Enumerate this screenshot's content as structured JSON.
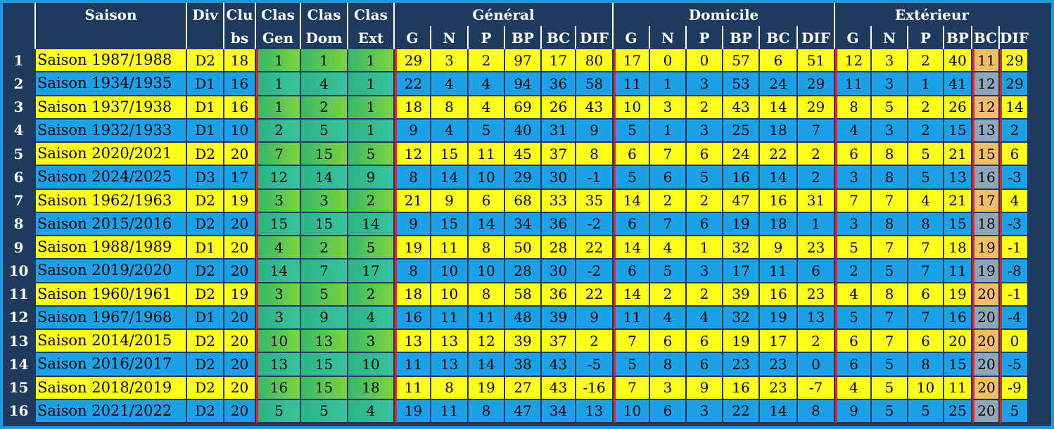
{
  "header": {
    "saison": "Saison",
    "div": "Div",
    "clubs_top": "Clu",
    "clubs_bottom": "bs",
    "clas_top": [
      "Clas",
      "Clas",
      "Clas"
    ],
    "clas_bottom": [
      "Gen",
      "Dom",
      "Ext"
    ],
    "groups": [
      "Général",
      "Domicile",
      "Extérieur"
    ],
    "stat_cols": [
      "G",
      "N",
      "P",
      "BP",
      "BC",
      "DIF"
    ]
  },
  "colors": {
    "background": "#1e3a5f",
    "border_accent": "#1a9be0",
    "row_yellow": "#ffff1a",
    "row_blue": "#1aa1e8",
    "separator_red": "#e8212a"
  },
  "rows": [
    {
      "rank": "1",
      "saison": "Saison 1987/1988",
      "div": "D2",
      "clubs": "18",
      "cg": "1",
      "cd": "1",
      "ce": "1",
      "gen": [
        "29",
        "3",
        "2",
        "97",
        "17",
        "80"
      ],
      "dom": [
        "17",
        "0",
        "0",
        "57",
        "6",
        "51"
      ],
      "ext": [
        "12",
        "3",
        "2",
        "40",
        "11",
        "29"
      ]
    },
    {
      "rank": "2",
      "saison": "Saison 1934/1935",
      "div": "D1",
      "clubs": "16",
      "cg": "1",
      "cd": "4",
      "ce": "1",
      "gen": [
        "22",
        "4",
        "4",
        "94",
        "36",
        "58"
      ],
      "dom": [
        "11",
        "1",
        "3",
        "53",
        "24",
        "29"
      ],
      "ext": [
        "11",
        "3",
        "1",
        "41",
        "12",
        "29"
      ]
    },
    {
      "rank": "3",
      "saison": "Saison 1937/1938",
      "div": "D1",
      "clubs": "16",
      "cg": "1",
      "cd": "2",
      "ce": "1",
      "gen": [
        "18",
        "8",
        "4",
        "69",
        "26",
        "43"
      ],
      "dom": [
        "10",
        "3",
        "2",
        "43",
        "14",
        "29"
      ],
      "ext": [
        "8",
        "5",
        "2",
        "26",
        "12",
        "14"
      ]
    },
    {
      "rank": "4",
      "saison": "Saison 1932/1933",
      "div": "D1",
      "clubs": "10",
      "cg": "2",
      "cd": "5",
      "ce": "1",
      "gen": [
        "9",
        "4",
        "5",
        "40",
        "31",
        "9"
      ],
      "dom": [
        "5",
        "1",
        "3",
        "25",
        "18",
        "7"
      ],
      "ext": [
        "4",
        "3",
        "2",
        "15",
        "13",
        "2"
      ]
    },
    {
      "rank": "5",
      "saison": "Saison 2020/2021",
      "div": "D2",
      "clubs": "20",
      "cg": "7",
      "cd": "15",
      "ce": "5",
      "gen": [
        "12",
        "15",
        "11",
        "45",
        "37",
        "8"
      ],
      "dom": [
        "6",
        "7",
        "6",
        "24",
        "22",
        "2"
      ],
      "ext": [
        "6",
        "8",
        "5",
        "21",
        "15",
        "6"
      ]
    },
    {
      "rank": "6",
      "saison": "Saison 2024/2025",
      "div": "D3",
      "clubs": "17",
      "cg": "12",
      "cd": "14",
      "ce": "9",
      "gen": [
        "8",
        "14",
        "10",
        "29",
        "30",
        "-1"
      ],
      "dom": [
        "5",
        "6",
        "5",
        "16",
        "14",
        "2"
      ],
      "ext": [
        "3",
        "8",
        "5",
        "13",
        "16",
        "-3"
      ]
    },
    {
      "rank": "7",
      "saison": "Saison 1962/1963",
      "div": "D2",
      "clubs": "19",
      "cg": "3",
      "cd": "3",
      "ce": "2",
      "gen": [
        "21",
        "9",
        "6",
        "68",
        "33",
        "35"
      ],
      "dom": [
        "14",
        "2",
        "2",
        "47",
        "16",
        "31"
      ],
      "ext": [
        "7",
        "7",
        "4",
        "21",
        "17",
        "4"
      ]
    },
    {
      "rank": "8",
      "saison": "Saison 2015/2016",
      "div": "D2",
      "clubs": "20",
      "cg": "15",
      "cd": "15",
      "ce": "14",
      "gen": [
        "9",
        "15",
        "14",
        "34",
        "36",
        "-2"
      ],
      "dom": [
        "6",
        "7",
        "6",
        "19",
        "18",
        "1"
      ],
      "ext": [
        "3",
        "8",
        "8",
        "15",
        "18",
        "-3"
      ]
    },
    {
      "rank": "9",
      "saison": "Saison 1988/1989",
      "div": "D1",
      "clubs": "20",
      "cg": "4",
      "cd": "2",
      "ce": "5",
      "gen": [
        "19",
        "11",
        "8",
        "50",
        "28",
        "22"
      ],
      "dom": [
        "14",
        "4",
        "1",
        "32",
        "9",
        "23"
      ],
      "ext": [
        "5",
        "7",
        "7",
        "18",
        "19",
        "-1"
      ]
    },
    {
      "rank": "10",
      "saison": "Saison 2019/2020",
      "div": "D2",
      "clubs": "20",
      "cg": "14",
      "cd": "7",
      "ce": "17",
      "gen": [
        "8",
        "10",
        "10",
        "28",
        "30",
        "-2"
      ],
      "dom": [
        "6",
        "5",
        "3",
        "17",
        "11",
        "6"
      ],
      "ext": [
        "2",
        "5",
        "7",
        "11",
        "19",
        "-8"
      ]
    },
    {
      "rank": "11",
      "saison": "Saison 1960/1961",
      "div": "D2",
      "clubs": "19",
      "cg": "3",
      "cd": "5",
      "ce": "2",
      "gen": [
        "18",
        "10",
        "8",
        "58",
        "36",
        "22"
      ],
      "dom": [
        "14",
        "2",
        "2",
        "39",
        "16",
        "23"
      ],
      "ext": [
        "4",
        "8",
        "6",
        "19",
        "20",
        "-1"
      ]
    },
    {
      "rank": "12",
      "saison": "Saison 1967/1968",
      "div": "D1",
      "clubs": "20",
      "cg": "3",
      "cd": "9",
      "ce": "4",
      "gen": [
        "16",
        "11",
        "11",
        "48",
        "39",
        "9"
      ],
      "dom": [
        "11",
        "4",
        "4",
        "32",
        "19",
        "13"
      ],
      "ext": [
        "5",
        "7",
        "7",
        "16",
        "20",
        "-4"
      ]
    },
    {
      "rank": "13",
      "saison": "Saison 2014/2015",
      "div": "D2",
      "clubs": "20",
      "cg": "10",
      "cd": "13",
      "ce": "3",
      "gen": [
        "13",
        "13",
        "12",
        "39",
        "37",
        "2"
      ],
      "dom": [
        "7",
        "6",
        "6",
        "19",
        "17",
        "2"
      ],
      "ext": [
        "6",
        "7",
        "6",
        "20",
        "20",
        "0"
      ]
    },
    {
      "rank": "14",
      "saison": "Saison 2016/2017",
      "div": "D2",
      "clubs": "20",
      "cg": "13",
      "cd": "15",
      "ce": "10",
      "gen": [
        "11",
        "13",
        "14",
        "38",
        "43",
        "-5"
      ],
      "dom": [
        "5",
        "8",
        "6",
        "23",
        "23",
        "0"
      ],
      "ext": [
        "6",
        "5",
        "8",
        "15",
        "20",
        "-5"
      ]
    },
    {
      "rank": "15",
      "saison": "Saison 2018/2019",
      "div": "D2",
      "clubs": "20",
      "cg": "16",
      "cd": "15",
      "ce": "18",
      "gen": [
        "11",
        "8",
        "19",
        "27",
        "43",
        "-16"
      ],
      "dom": [
        "7",
        "3",
        "9",
        "16",
        "23",
        "-7"
      ],
      "ext": [
        "4",
        "5",
        "10",
        "11",
        "20",
        "-9"
      ]
    },
    {
      "rank": "16",
      "saison": "Saison 2021/2022",
      "div": "D2",
      "clubs": "20",
      "cg": "5",
      "cd": "5",
      "ce": "4",
      "gen": [
        "19",
        "11",
        "8",
        "47",
        "34",
        "13"
      ],
      "dom": [
        "10",
        "6",
        "3",
        "22",
        "14",
        "8"
      ],
      "ext": [
        "9",
        "5",
        "5",
        "25",
        "20",
        "5"
      ]
    }
  ]
}
